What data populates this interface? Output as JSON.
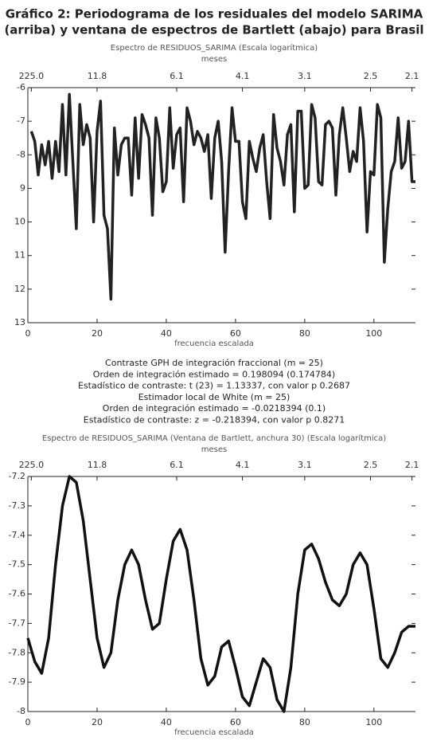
{
  "title": [
    "Gráfico 2: Periodograma de los residuales del modelo SARIMA",
    "(arriba) y ventana de espectros de Bartlett (abajo) para Brasil"
  ],
  "stats": [
    "Contraste GPH de integración fraccional (m = 25)",
    "Orden de integración estimado = 0.198094 (0.174784)",
    "Estadístico de contraste: t (23) = 1.13337, con valor p  0.2687",
    "Estimador local de White (m = 25)",
    "Orden de integración estimado = -0.0218394 (0.1)",
    "Estadístico de contraste: z = -0.218394, con valor p 0.8271"
  ],
  "chart_data": [
    {
      "type": "line",
      "title": "Espectro de RESIDUOS_SARIMA (Escala logarítmica)",
      "x2label": "meses",
      "xlabel": "frecuencia escalada",
      "color": "#222222",
      "x": [
        1,
        2,
        3,
        4,
        5,
        6,
        7,
        8,
        9,
        10,
        11,
        12,
        13,
        14,
        15,
        16,
        17,
        18,
        19,
        20,
        21,
        22,
        23,
        24,
        25,
        26,
        27,
        28,
        29,
        30,
        31,
        32,
        33,
        34,
        35,
        36,
        37,
        38,
        39,
        40,
        41,
        42,
        43,
        44,
        45,
        46,
        47,
        48,
        49,
        50,
        51,
        52,
        53,
        54,
        55,
        56,
        57,
        58,
        59,
        60,
        61,
        62,
        63,
        64,
        65,
        66,
        67,
        68,
        69,
        70,
        71,
        72,
        73,
        74,
        75,
        76,
        77,
        78,
        79,
        80,
        81,
        82,
        83,
        84,
        85,
        86,
        87,
        88,
        89,
        90,
        91,
        92,
        93,
        94,
        95,
        96,
        97,
        98,
        99,
        100,
        101,
        102,
        103,
        104,
        105,
        106,
        107,
        108,
        109,
        110,
        111,
        112
      ],
      "values": [
        -7.3,
        -7.6,
        -8.6,
        -7.7,
        -8.3,
        -7.6,
        -8.7,
        -7.6,
        -8.5,
        -6.5,
        -8.6,
        -6.2,
        -8.2,
        -10.2,
        -6.5,
        -7.7,
        -7.1,
        -7.5,
        -10.0,
        -7.3,
        -6.4,
        -9.8,
        -10.2,
        -12.3,
        -7.2,
        -8.6,
        -7.7,
        -7.5,
        -7.5,
        -9.2,
        -6.9,
        -8.7,
        -6.8,
        -7.1,
        -7.5,
        -9.8,
        -6.9,
        -7.5,
        -9.1,
        -8.8,
        -6.6,
        -8.4,
        -7.4,
        -7.2,
        -9.4,
        -6.6,
        -7.0,
        -7.7,
        -7.3,
        -7.5,
        -7.9,
        -7.4,
        -9.3,
        -7.5,
        -7.0,
        -8.2,
        -10.9,
        -8.5,
        -6.6,
        -7.6,
        -7.6,
        -9.4,
        -9.9,
        -7.6,
        -8.1,
        -8.5,
        -7.8,
        -7.4,
        -8.8,
        -9.9,
        -6.8,
        -7.8,
        -8.2,
        -8.9,
        -7.4,
        -7.1,
        -9.7,
        -6.7,
        -6.7,
        -9.0,
        -8.9,
        -6.5,
        -6.9,
        -8.8,
        -8.9,
        -7.1,
        -7.0,
        -7.2,
        -9.2,
        -7.4,
        -6.6,
        -7.5,
        -8.5,
        -7.9,
        -8.2,
        -6.6,
        -7.6,
        -10.3,
        -8.5,
        -8.6,
        -6.5,
        -6.9,
        -11.2,
        -9.6,
        -8.5,
        -8.2,
        -6.9,
        -8.4,
        -8.2,
        -7.0,
        -8.8,
        -8.8
      ],
      "xlim": [
        0,
        112
      ],
      "xticks": [
        0,
        20,
        40,
        60,
        80,
        100
      ],
      "x2ticks": [
        {
          "value": 1,
          "label": "225.0"
        },
        {
          "value": 20,
          "label": "11.8"
        },
        {
          "value": 43,
          "label": "6.1"
        },
        {
          "value": 62,
          "label": "4.1"
        },
        {
          "value": 80,
          "label": "3.1"
        },
        {
          "value": 99,
          "label": "2.5"
        },
        {
          "value": 111,
          "label": "2.1"
        }
      ],
      "ylim": [
        -13,
        -6
      ],
      "yticks": [
        -6,
        -7,
        -8,
        {
          "value": -9,
          "label": "9"
        },
        {
          "value": -10,
          "label": "10"
        },
        {
          "value": -11,
          "label": "11"
        },
        {
          "value": -12,
          "label": "12"
        },
        {
          "value": -13,
          "label": "13"
        }
      ]
    },
    {
      "type": "line",
      "title": "Espectro de RESIDUOS_SARIMA (Ventana de Bartlett, anchura 30) (Escala logarítmica)",
      "x2label": "meses",
      "xlabel": "frecuencia escalada",
      "color": "#111111",
      "x": [
        0,
        2,
        4,
        6,
        8,
        10,
        12,
        14,
        16,
        18,
        20,
        22,
        24,
        26,
        28,
        30,
        32,
        34,
        36,
        38,
        40,
        42,
        44,
        46,
        48,
        50,
        52,
        54,
        56,
        58,
        60,
        62,
        64,
        66,
        68,
        70,
        72,
        74,
        76,
        78,
        80,
        82,
        84,
        86,
        88,
        90,
        92,
        94,
        96,
        98,
        100,
        102,
        104,
        106,
        108,
        110,
        112
      ],
      "values": [
        -7.75,
        -7.83,
        -7.87,
        -7.75,
        -7.5,
        -7.3,
        -7.2,
        -7.22,
        -7.35,
        -7.55,
        -7.75,
        -7.85,
        -7.8,
        -7.62,
        -7.5,
        -7.45,
        -7.5,
        -7.62,
        -7.72,
        -7.7,
        -7.55,
        -7.42,
        -7.38,
        -7.45,
        -7.62,
        -7.82,
        -7.91,
        -7.88,
        -7.78,
        -7.76,
        -7.85,
        -7.95,
        -7.98,
        -7.9,
        -7.82,
        -7.85,
        -7.96,
        -8.0,
        -7.85,
        -7.6,
        -7.45,
        -7.43,
        -7.48,
        -7.56,
        -7.62,
        -7.64,
        -7.6,
        -7.5,
        -7.46,
        -7.5,
        -7.65,
        -7.82,
        -7.85,
        -7.8,
        -7.73,
        -7.71,
        -7.71
      ],
      "xlim": [
        0,
        112
      ],
      "xticks": [
        0,
        20,
        40,
        60,
        80,
        100
      ],
      "x2ticks": [
        {
          "value": 1,
          "label": "225.0"
        },
        {
          "value": 20,
          "label": "11.8"
        },
        {
          "value": 43,
          "label": "6.1"
        },
        {
          "value": 62,
          "label": "4.1"
        },
        {
          "value": 80,
          "label": "3.1"
        },
        {
          "value": 99,
          "label": "2.5"
        },
        {
          "value": 111,
          "label": "2.1"
        }
      ],
      "ylim": [
        -8,
        -7.2
      ],
      "yticks": [
        -7.2,
        -7.3,
        -7.4,
        -7.5,
        -7.6,
        -7.7,
        -7.8,
        -7.9,
        -8
      ]
    }
  ]
}
